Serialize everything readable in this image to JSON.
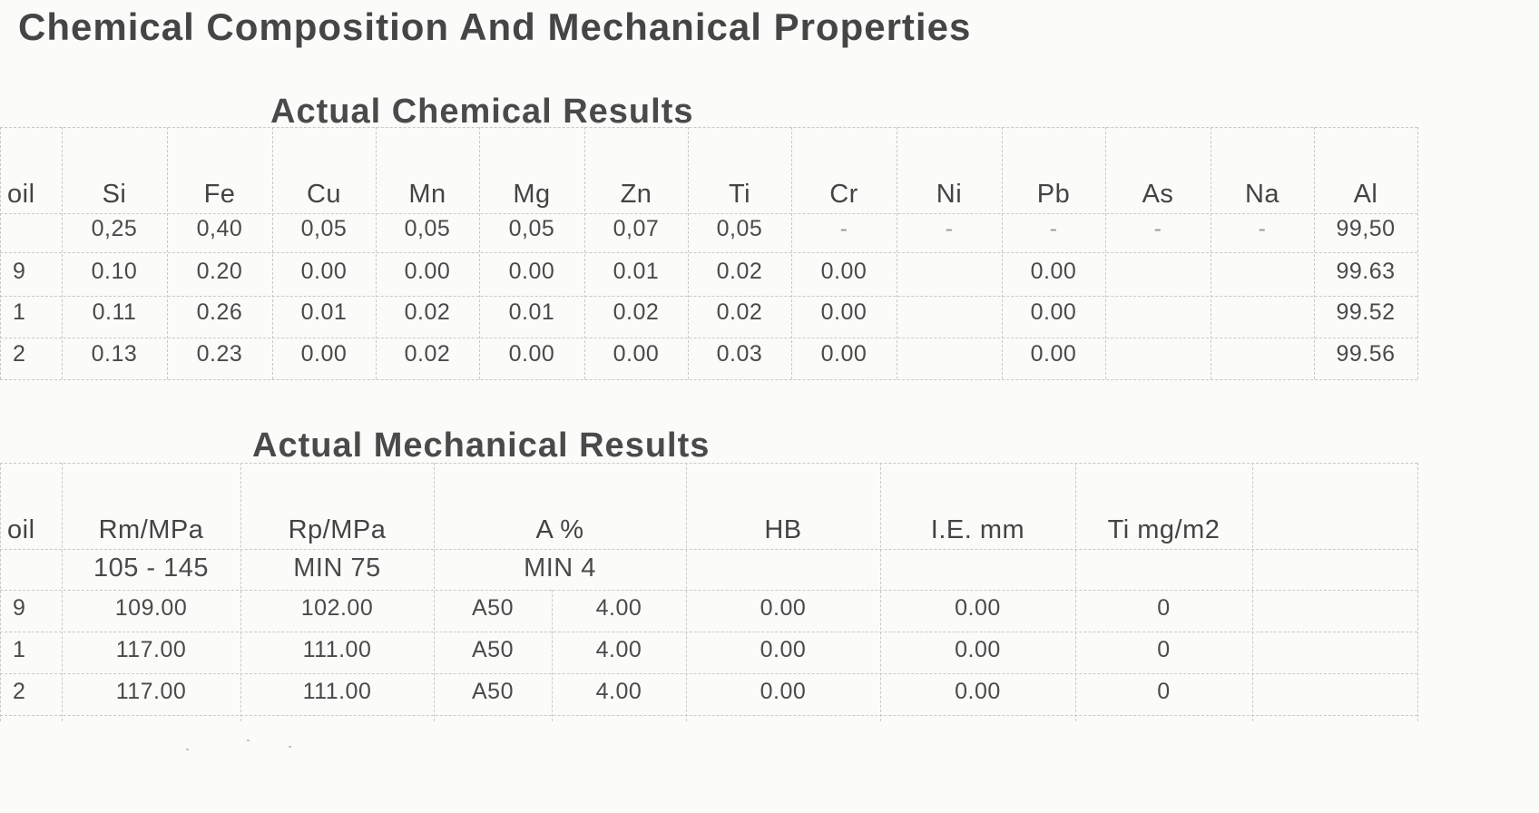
{
  "title": "Chemical Composition And Mechanical Properties",
  "chemical": {
    "title": "Actual Chemical Results",
    "headers": [
      "oil",
      "Si",
      "Fe",
      "Cu",
      "Mn",
      "Mg",
      "Zn",
      "Ti",
      "Cr",
      "Ni",
      "Pb",
      "As",
      "Na",
      "Al"
    ],
    "rows": [
      [
        "",
        "0,25",
        "0,40",
        "0,05",
        "0,05",
        "0,05",
        "0,07",
        "0,05",
        "-",
        "-",
        "-",
        "-",
        "-",
        "99,50"
      ],
      [
        "9",
        "0.10",
        "0.20",
        "0.00",
        "0.00",
        "0.00",
        "0.01",
        "0.02",
        "0.00",
        "",
        "0.00",
        "",
        "",
        "99.63"
      ],
      [
        "1",
        "0.11",
        "0.26",
        "0.01",
        "0.02",
        "0.01",
        "0.02",
        "0.02",
        "0.00",
        "",
        "0.00",
        "",
        "",
        "99.52"
      ],
      [
        "2",
        "0.13",
        "0.23",
        "0.00",
        "0.02",
        "0.00",
        "0.00",
        "0.03",
        "0.00",
        "",
        "0.00",
        "",
        "",
        "99.56"
      ]
    ]
  },
  "mechanical": {
    "title": "Actual Mechanical Results",
    "headers": [
      "oil",
      "Rm/MPa",
      "Rp/MPa",
      "A  %",
      "HB",
      "I.E. mm",
      "Ti mg/m2"
    ],
    "spec": [
      "",
      "105 - 145",
      "MIN 75",
      "MIN 4",
      "",
      "",
      ""
    ],
    "rows": [
      [
        "9",
        "109.00",
        "102.00",
        "A50",
        "4.00",
        "0.00",
        "0.00",
        "0"
      ],
      [
        "1",
        "117.00",
        "111.00",
        "A50",
        "4.00",
        "0.00",
        "0.00",
        "0"
      ],
      [
        "2",
        "117.00",
        "111.00",
        "A50",
        "4.00",
        "0.00",
        "0.00",
        "0"
      ]
    ]
  }
}
